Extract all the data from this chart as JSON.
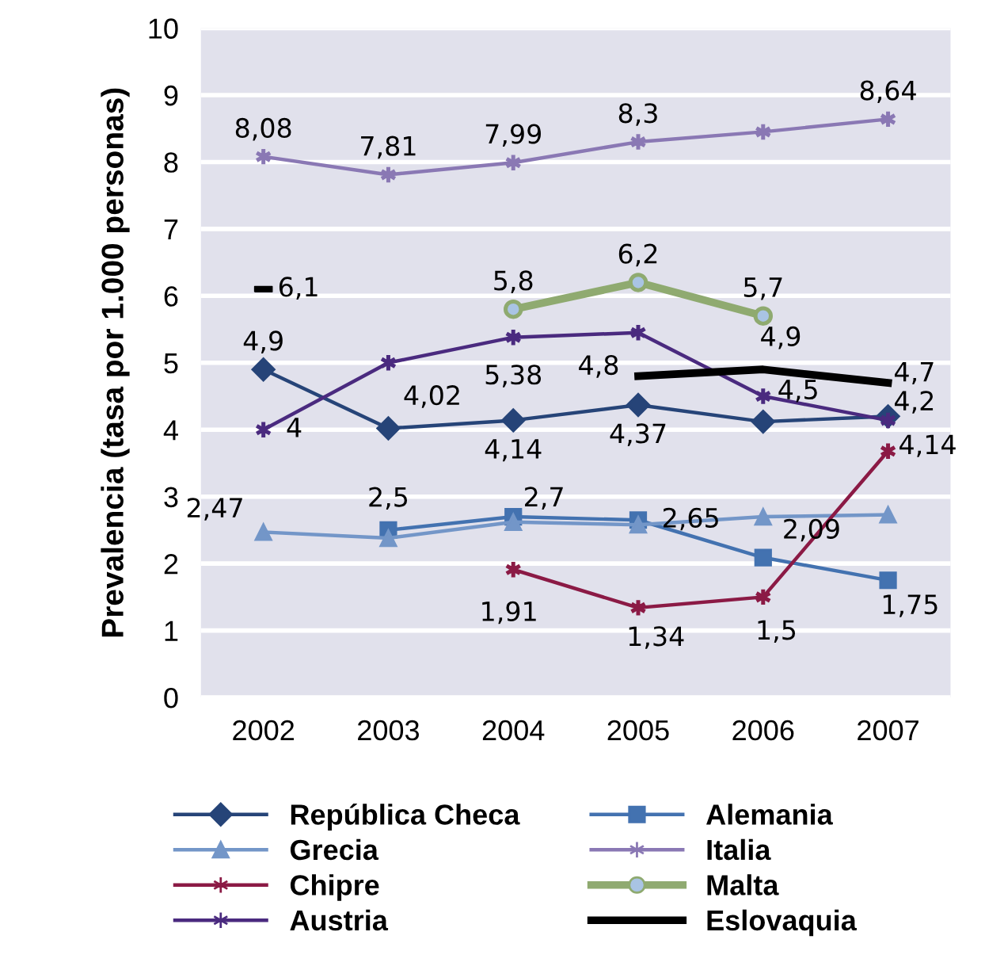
{
  "chart_data": {
    "type": "line",
    "ylabel": "Prevalencia (tasa por 1.000 personas)",
    "categories": [
      "2002",
      "2003",
      "2004",
      "2005",
      "2006",
      "2007"
    ],
    "ylim": [
      0,
      10
    ],
    "yticks": [
      0,
      1,
      2,
      3,
      4,
      5,
      6,
      7,
      8,
      9,
      10
    ],
    "grid": "y",
    "legend": "bottom",
    "series": [
      {
        "name": "República Checa",
        "color": "#264478",
        "marker": "diamond",
        "values": [
          4.9,
          4.02,
          4.14,
          4.37,
          4.12,
          4.2
        ],
        "value_labels": [
          "4,9",
          "4,02",
          "4,14",
          "4,37",
          null,
          "4,2"
        ]
      },
      {
        "name": "Alemania",
        "color": "#4372b0",
        "marker": "square",
        "values": [
          null,
          2.5,
          2.7,
          2.65,
          2.09,
          1.75
        ],
        "value_labels": [
          null,
          "2,5",
          "2,7",
          "2,65",
          "2,09",
          "1,75"
        ]
      },
      {
        "name": "Grecia",
        "color": "#7396c8",
        "marker": "triangle",
        "values": [
          2.47,
          2.38,
          2.62,
          2.58,
          2.7,
          2.73
        ],
        "value_labels": [
          "2,47",
          null,
          null,
          null,
          null,
          null
        ]
      },
      {
        "name": "Italia",
        "color": "#8a78b4",
        "marker": "cross",
        "values": [
          8.08,
          7.81,
          7.99,
          8.3,
          8.45,
          8.64
        ],
        "value_labels": [
          "8,08",
          "7,81",
          "7,99",
          "8,3",
          null,
          "8,64"
        ]
      },
      {
        "name": "Chipre",
        "color": "#8b1a45",
        "marker": "cross",
        "values": [
          null,
          null,
          1.91,
          1.34,
          1.5,
          3.68
        ],
        "value_labels": [
          null,
          null,
          "1,91",
          "1,34",
          "1,5",
          null
        ]
      },
      {
        "name": "Malta",
        "color": "#8faa70",
        "marker": "circle",
        "values": [
          null,
          null,
          5.8,
          6.2,
          5.7,
          null
        ],
        "value_labels": [
          null,
          null,
          "5,8",
          "6,2",
          "5,7",
          null
        ]
      },
      {
        "name": "Austria",
        "color": "#4a2a7f",
        "marker": "cross",
        "values": [
          4,
          5.0,
          5.38,
          5.45,
          4.5,
          4.14
        ],
        "value_labels": [
          "4",
          null,
          "5,38",
          null,
          "4,5",
          "4,14"
        ]
      },
      {
        "name": "Eslovaquia",
        "color": "#000000",
        "marker": "none",
        "values": [
          6.1,
          null,
          null,
          4.8,
          4.9,
          4.7
        ],
        "value_labels": [
          "6,1",
          null,
          null,
          "4,8",
          "4,9",
          "4,7"
        ]
      }
    ]
  }
}
